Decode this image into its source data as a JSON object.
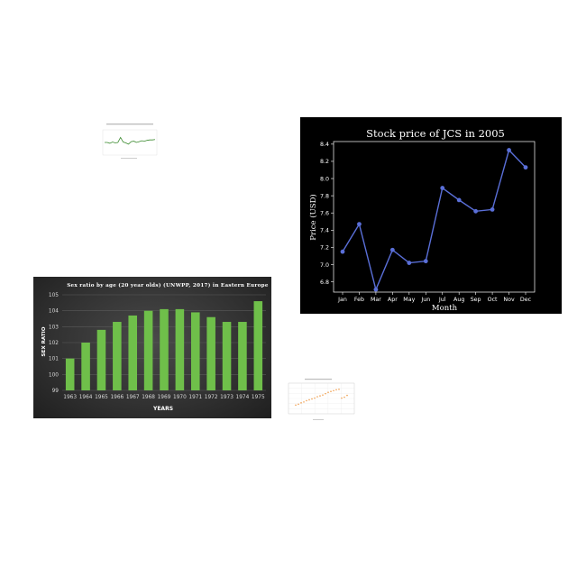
{
  "stock_chart": {
    "title": "Stock price of JCS in 2005",
    "xlabel": "Month",
    "ylabel": "Price (USD)"
  },
  "sex_chart": {
    "title": "Sex ratio by age (20 year olds) (UNWPP, 2017) in Eastern Europe",
    "xlabel": "YEARS",
    "ylabel": "SEX RATIO"
  },
  "chart_data": [
    {
      "type": "line",
      "title": "",
      "xlabel": "",
      "ylabel": "",
      "x": [
        1,
        2,
        3,
        4,
        5,
        6,
        7,
        8,
        9,
        10,
        11,
        12,
        13,
        14,
        15,
        16,
        17,
        18,
        19,
        20
      ],
      "values": [
        3.0,
        3.0,
        2.8,
        3.1,
        2.9,
        3.0,
        4.2,
        3.1,
        2.9,
        2.6,
        3.2,
        3.3,
        3.0,
        3.2,
        3.4,
        3.3,
        3.5,
        3.6,
        3.6,
        3.7
      ],
      "ylim": [
        0,
        6
      ],
      "line_color": "#3a8a2e",
      "grid": false
    },
    {
      "type": "line",
      "title": "Stock price of JCS in 2005",
      "xlabel": "Month",
      "ylabel": "Price (USD)",
      "categories": [
        "Jan",
        "Feb",
        "Mar",
        "Apr",
        "May",
        "Jun",
        "Jul",
        "Aug",
        "Sep",
        "Oct",
        "Nov",
        "Dec"
      ],
      "values": [
        7.15,
        7.47,
        6.71,
        7.17,
        7.02,
        7.04,
        7.89,
        7.75,
        7.62,
        7.64,
        8.33,
        8.13
      ],
      "yticks": [
        6.8,
        7.0,
        7.2,
        7.4,
        7.6,
        7.8,
        8.0,
        8.2,
        8.4
      ],
      "ylim": [
        6.68,
        8.43
      ],
      "line_color": "#5a6fd8",
      "background": "#000000",
      "grid": false
    },
    {
      "type": "bar",
      "title": "Sex ratio by age (20 year olds) (UNWPP, 2017) in Eastern Europe",
      "xlabel": "YEARS",
      "ylabel": "SEX RATIO",
      "categories": [
        "1963",
        "1964",
        "1965",
        "1966",
        "1967",
        "1968",
        "1969",
        "1970",
        "1971",
        "1972",
        "1973",
        "1974",
        "1975"
      ],
      "values": [
        101.0,
        102.0,
        102.8,
        103.3,
        103.7,
        104.0,
        104.1,
        104.1,
        103.9,
        103.6,
        103.3,
        103.3,
        104.6
      ],
      "yticks": [
        99,
        100,
        101,
        102,
        103,
        104,
        105
      ],
      "ylim": [
        99,
        105
      ],
      "bar_color": "#6fbf4a",
      "grid": true
    },
    {
      "type": "scatter",
      "title": "",
      "xlabel": "",
      "ylabel": "",
      "x": [
        1,
        2,
        3,
        4,
        5,
        6,
        7,
        8,
        9,
        10,
        11,
        12,
        13,
        14,
        15,
        16,
        17,
        18,
        19,
        20
      ],
      "values": [
        2.0,
        2.2,
        2.5,
        2.7,
        3.0,
        3.2,
        3.4,
        3.6,
        3.9,
        4.1,
        4.3,
        4.6,
        4.9,
        5.1,
        5.3,
        5.5,
        5.6,
        3.6,
        3.8,
        4.2
      ],
      "ylim": [
        0,
        7
      ],
      "marker_color": "#f0a050",
      "grid": true
    }
  ]
}
